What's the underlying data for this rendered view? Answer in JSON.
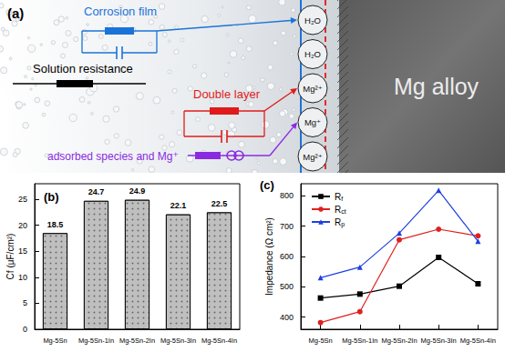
{
  "diagram": {
    "panel_label": "(a)",
    "substrate": "Mg alloy",
    "film_species": [
      "H₂O",
      "H₂O",
      "Mg²⁺",
      "Mg⁺",
      "Mg²⁺"
    ],
    "elements": {
      "corrosion_film": {
        "label": "Corrosion film",
        "color": "#1a73d9"
      },
      "solution_resistance": {
        "label": "Solution resistance",
        "color": "#000000"
      },
      "double_layer": {
        "label": "Double layer",
        "color": "#e01b1b"
      },
      "adsorbed": {
        "label": "adsorbed species and Mg⁺",
        "color": "#8a2be2"
      }
    }
  },
  "chart_data": [
    {
      "type": "bar",
      "title": "(b)",
      "ylabel": "Cf (μF/cm²)",
      "categories": [
        "Mg-5Sn",
        "Mg-5Sn-1In",
        "Mg-5Sn-2In",
        "Mg-5Sn-3In",
        "Mg-5Sn-4In"
      ],
      "values": [
        18.5,
        24.7,
        24.9,
        22.1,
        22.5
      ],
      "color": "#bfbfbf",
      "ylim": [
        0,
        28
      ],
      "yticks": [
        0,
        5,
        10,
        15,
        20,
        25
      ],
      "grid": false,
      "data_labels": true
    },
    {
      "type": "line",
      "title": "(c)",
      "ylabel": "Impedance (Ω cm²)",
      "categories": [
        "Mg-5Sn",
        "Mg-5Sn-1In",
        "Mg-5Sn-2In",
        "Mg-5Sn-3In",
        "Mg-5Sn-4In"
      ],
      "ylim": [
        360,
        840
      ],
      "yticks": [
        400,
        500,
        600,
        700,
        800
      ],
      "grid": false,
      "legend": "upper left",
      "series": [
        {
          "name": "Rf",
          "color": "#000000",
          "marker": "square",
          "values": [
            463,
            476,
            502,
            597,
            510
          ]
        },
        {
          "name": "Rct",
          "color": "#e02020",
          "marker": "circle",
          "values": [
            382,
            418,
            655,
            690,
            668
          ]
        },
        {
          "name": "Rp",
          "color": "#1f3fe0",
          "marker": "triangle",
          "values": [
            530,
            565,
            677,
            818,
            650
          ]
        }
      ]
    }
  ]
}
